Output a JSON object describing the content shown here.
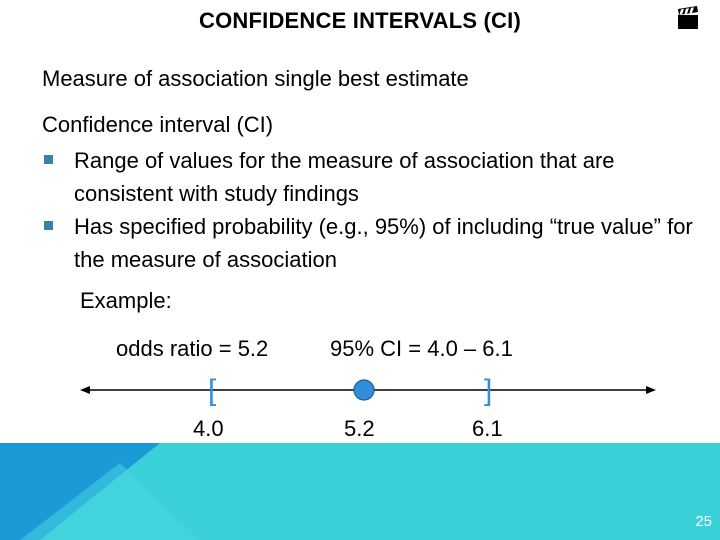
{
  "slide": {
    "title": "CONFIDENCE INTERVALS (CI)",
    "line1": "Measure of association single best estimate",
    "line2": "Confidence interval (CI)",
    "bullets": [
      "Range of values for the measure of association that are consistent with study findings",
      "Has specified probability (e.g., 95%) of including “true value” for the measure of association"
    ],
    "example_label": "Example:",
    "odds_ratio_text": "odds ratio = 5.2",
    "ci_text": "95% CI = 4.0 – 6.1",
    "number_line": {
      "lower_bracket": "[",
      "upper_bracket": "]",
      "lower_label": "4.0",
      "point_label": "5.2",
      "upper_label": "6.1",
      "point_color": "#2f8fd8"
    },
    "page_number": "25"
  },
  "colors": {
    "bullet": "#3a80a8",
    "bracket": "#2f8fd8",
    "band_light": "#39d0d8",
    "band_blue": "#1a9ad6"
  },
  "icons": {
    "corner": "clapperboard-icon"
  }
}
